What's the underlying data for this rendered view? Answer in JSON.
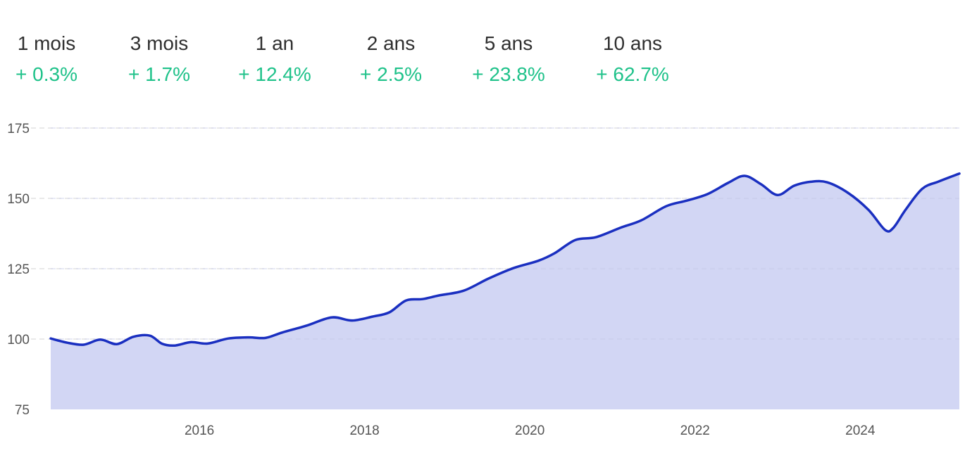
{
  "periods": [
    {
      "label": "1 mois",
      "change": "+ 0.3%"
    },
    {
      "label": "3 mois",
      "change": "+ 1.7%"
    },
    {
      "label": "1 an",
      "change": "+ 12.4%"
    },
    {
      "label": "2 ans",
      "change": "+ 2.5%"
    },
    {
      "label": "5 ans",
      "change": "+ 23.8%"
    },
    {
      "label": "10 ans",
      "change": "+ 62.7%"
    }
  ],
  "colors": {
    "positive": "#1fc28a",
    "line": "#1a2fc0",
    "area": "#d2d6f4",
    "grid": "#dcdcdc",
    "text": "#2f2f2f"
  },
  "chart_data": {
    "type": "area",
    "title": "",
    "xlabel": "",
    "ylabel": "",
    "ylim": [
      75,
      175
    ],
    "xlim": [
      2014.2,
      2025.2
    ],
    "yticks": [
      75,
      100,
      125,
      150,
      175
    ],
    "xticks": [
      2016,
      2018,
      2020,
      2022,
      2024
    ],
    "xtick_labels": [
      "2016",
      "2018",
      "2020",
      "2022",
      "2024"
    ],
    "grid": "horizontal dashed",
    "series": [
      {
        "x": [
          2014.2,
          2014.4,
          2014.6,
          2014.8,
          2015.0,
          2015.2,
          2015.4,
          2015.55,
          2015.7,
          2015.9,
          2016.1,
          2016.35,
          2016.6,
          2016.8,
          2017.0,
          2017.3,
          2017.6,
          2017.85,
          2018.1,
          2018.3,
          2018.5,
          2018.7,
          2018.9,
          2019.2,
          2019.5,
          2019.8,
          2020.1,
          2020.3,
          2020.55,
          2020.8,
          2021.1,
          2021.35,
          2021.65,
          2021.9,
          2022.15,
          2022.4,
          2022.6,
          2022.8,
          2023.0,
          2023.2,
          2023.4,
          2023.6,
          2023.85,
          2024.1,
          2024.3,
          2024.4,
          2024.55,
          2024.75,
          2024.95,
          2025.2
        ],
        "values": [
          100.2,
          98.7,
          98.0,
          99.8,
          98.2,
          100.8,
          101.2,
          98.3,
          97.7,
          98.9,
          98.4,
          100.2,
          100.6,
          100.4,
          102.3,
          104.8,
          107.7,
          106.6,
          108.0,
          109.5,
          113.7,
          114.2,
          115.5,
          117.2,
          121.5,
          125.2,
          127.8,
          130.5,
          135.2,
          136.2,
          139.6,
          142.2,
          147.2,
          149.2,
          151.5,
          155.5,
          158.0,
          155.0,
          151.2,
          154.5,
          155.9,
          155.7,
          152.0,
          145.9,
          138.8,
          139.5,
          146.0,
          153.4,
          156.0,
          158.8
        ]
      }
    ]
  }
}
